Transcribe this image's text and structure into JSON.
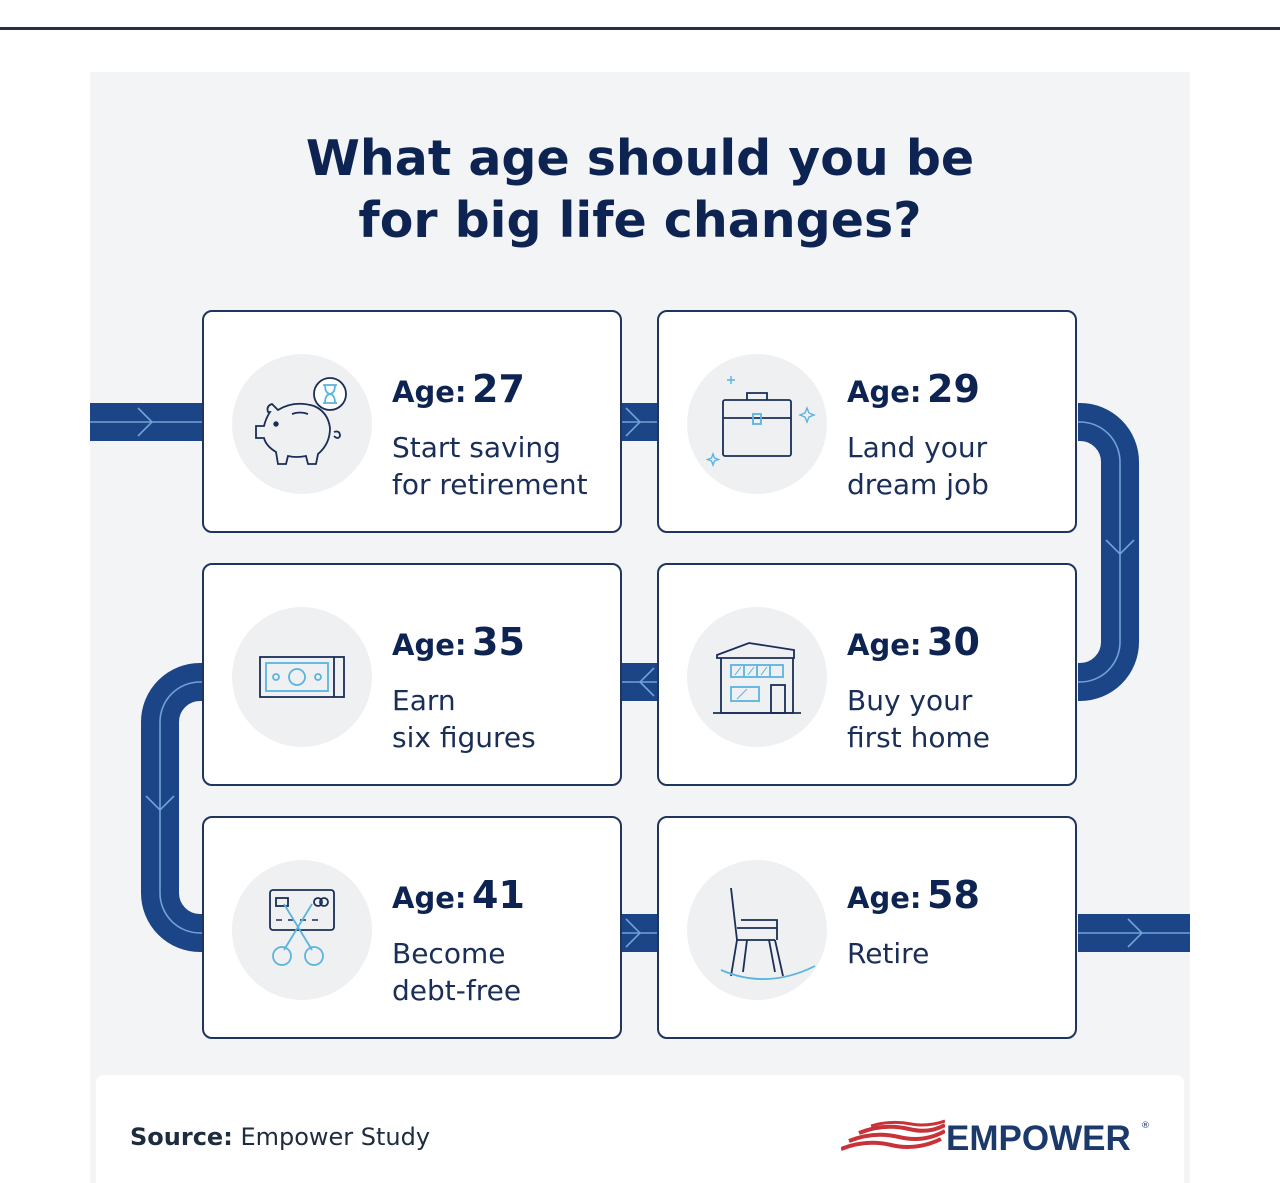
{
  "title": {
    "line1": "What age should you be",
    "line2": "for big life changes?"
  },
  "cards": [
    {
      "age_label": "Age:",
      "age": "27",
      "line1": "Start saving",
      "line2": "for retirement",
      "icon": "piggy-bank-hourglass-icon"
    },
    {
      "age_label": "Age:",
      "age": "29",
      "line1": "Land your",
      "line2": "dream job",
      "icon": "briefcase-sparkle-icon"
    },
    {
      "age_label": "Age:",
      "age": "35",
      "line1": "Earn",
      "line2": "six figures",
      "icon": "cash-bill-icon"
    },
    {
      "age_label": "Age:",
      "age": "30",
      "line1": "Buy your",
      "line2": "first home",
      "icon": "house-icon"
    },
    {
      "age_label": "Age:",
      "age": "41",
      "line1": "Become",
      "line2": "debt-free",
      "icon": "card-scissors-icon"
    },
    {
      "age_label": "Age:",
      "age": "58",
      "line1": "Retire",
      "line2": "",
      "icon": "rocking-chair-icon"
    }
  ],
  "footer": {
    "source_label": "Source:",
    "source_value": "Empower Study",
    "brand": "EMPOWER",
    "brand_mark": "®"
  },
  "colors": {
    "navy": "#0d2352",
    "track": "#1c4587",
    "icon_blue": "#5ab4e0",
    "panel_bg": "#f3f4f6"
  }
}
